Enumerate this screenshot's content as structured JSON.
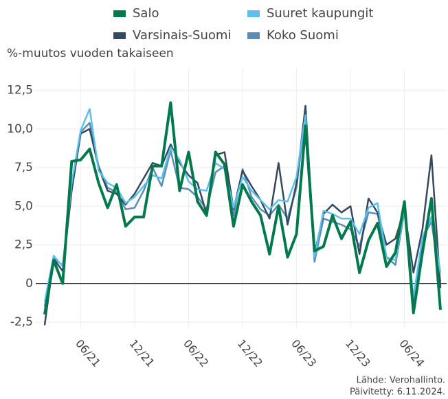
{
  "chart_data": {
    "type": "line",
    "y_axis_label": "%-muutos vuoden takaiseen",
    "source": "Lähde: Verohallinto.",
    "updated": "Päivitetty: 6.11.2024.",
    "categories": [
      null,
      null,
      null,
      null,
      "06/21",
      null,
      null,
      null,
      null,
      null,
      "12/21",
      null,
      null,
      null,
      null,
      null,
      "06/22",
      null,
      null,
      null,
      null,
      null,
      "12/22",
      null,
      null,
      null,
      null,
      null,
      "06/23",
      null,
      null,
      null,
      null,
      null,
      "12/23",
      null,
      null,
      null,
      null,
      null,
      "06/24",
      null,
      null,
      null,
      null
    ],
    "series": [
      {
        "name": "Salo",
        "color": "#007a4d",
        "values": [
          -2.0,
          1.5,
          0.0,
          7.9,
          8.0,
          8.7,
          6.5,
          4.9,
          6.4,
          3.7,
          4.3,
          4.3,
          7.6,
          7.6,
          11.7,
          6.0,
          8.5,
          5.3,
          4.4,
          8.5,
          7.7,
          3.7,
          6.4,
          5.3,
          4.4,
          1.9,
          5.0,
          1.7,
          3.2,
          10.2,
          2.1,
          2.4,
          4.4,
          2.9,
          4.0,
          0.7,
          2.8,
          3.9,
          1.1,
          2.0,
          5.3,
          -1.9,
          2.0,
          5.5,
          -1.7
        ]
      },
      {
        "name": "Suuret kaupungit",
        "color": "#5bc0eb",
        "values": [
          -1.2,
          1.8,
          1.1,
          6.5,
          9.9,
          11.3,
          7.3,
          6.5,
          6.2,
          5.2,
          5.6,
          6.3,
          7.0,
          6.8,
          8.8,
          8.0,
          6.6,
          6.1,
          6.0,
          7.8,
          7.4,
          4.9,
          6.9,
          6.0,
          5.4,
          4.8,
          5.4,
          5.3,
          6.9,
          10.9,
          1.7,
          4.7,
          4.5,
          4.2,
          4.2,
          3.2,
          4.9,
          5.2,
          1.7,
          1.5,
          4.9,
          -0.9,
          3.0,
          4.3,
          0.7
        ]
      },
      {
        "name": "Varsinais-Suomi",
        "color": "#34495e",
        "values": [
          -2.7,
          1.6,
          0.8,
          6.0,
          9.7,
          10.0,
          7.5,
          6.0,
          5.8,
          5.1,
          5.8,
          6.8,
          7.8,
          7.6,
          9.0,
          7.8,
          7.0,
          6.5,
          4.5,
          8.3,
          8.5,
          4.8,
          7.3,
          6.3,
          5.4,
          4.2,
          7.8,
          3.8,
          6.5,
          11.5,
          1.9,
          4.5,
          5.1,
          4.6,
          5.0,
          1.9,
          5.5,
          4.6,
          2.5,
          2.9,
          4.8,
          0.7,
          3.5,
          8.3,
          -0.3
        ]
      },
      {
        "name": "Koko Suomi",
        "color": "#5b8db8",
        "values": [
          -1.5,
          1.6,
          1.2,
          6.2,
          9.8,
          10.4,
          7.6,
          6.2,
          5.9,
          4.8,
          4.9,
          6.0,
          7.5,
          6.3,
          8.6,
          6.2,
          6.1,
          5.6,
          4.8,
          7.2,
          7.6,
          4.4,
          7.4,
          5.6,
          4.8,
          4.4,
          5.1,
          4.2,
          6.2,
          11.0,
          1.4,
          4.2,
          4.0,
          3.8,
          3.5,
          2.4,
          4.6,
          4.5,
          1.7,
          1.2,
          4.7,
          -1.2,
          2.9,
          4.0,
          0.1
        ]
      }
    ],
    "ylim": [
      -2.9,
      13.9
    ],
    "yticks": [
      {
        "value": -2.5,
        "label": "-2,5"
      },
      0,
      {
        "value": 2.5,
        "label": "2,5"
      },
      {
        "value": 5,
        "label": "5,0"
      },
      {
        "value": 7.5,
        "label": "7,5"
      },
      {
        "value": 10,
        "label": "10,0"
      },
      {
        "value": 12.5,
        "label": "12,5"
      }
    ],
    "grid": true
  }
}
